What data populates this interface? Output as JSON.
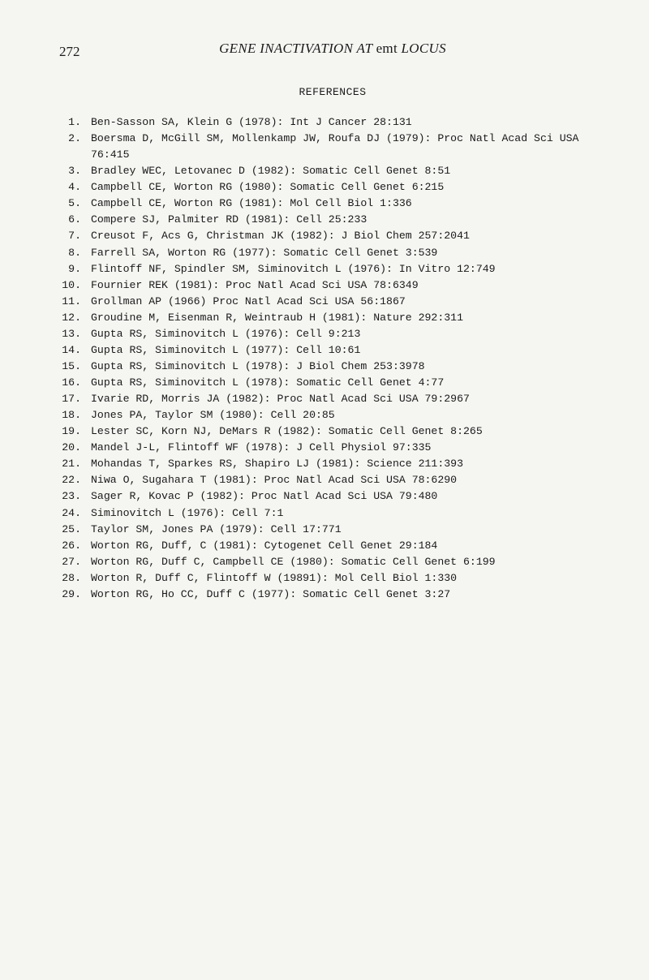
{
  "page_number": "272",
  "running_title_italic_1": "GENE INACTIVATION AT ",
  "running_title_roman": "emt",
  "running_title_italic_2": " LOCUS",
  "section_heading": "REFERENCES",
  "references": [
    {
      "num": "1.",
      "text": "Ben-Sasson SA, Klein G  (1978):  Int J Cancer 28:131"
    },
    {
      "num": "2.",
      "text": "Boersma D, McGill SM, Mollenkamp JW, Roufa DJ  (1979):  Proc Natl Acad Sci USA 76:415"
    },
    {
      "num": "3.",
      "text": "Bradley WEC, Letovanec D  (1982):  Somatic Cell Genet 8:51"
    },
    {
      "num": "4.",
      "text": "Campbell CE, Worton RG  (1980):  Somatic Cell Genet 6:215"
    },
    {
      "num": "5.",
      "text": "Campbell CE, Worton RG  (1981):  Mol Cell Biol 1:336"
    },
    {
      "num": "6.",
      "text": "Compere SJ, Palmiter RD  (1981):  Cell 25:233"
    },
    {
      "num": "7.",
      "text": "Creusot F, Acs G, Christman JK  (1982):  J Biol Chem 257:2041"
    },
    {
      "num": "8.",
      "text": "Farrell SA, Worton RG  (1977):  Somatic Cell Genet 3:539"
    },
    {
      "num": "9.",
      "text": "Flintoff NF, Spindler SM, Siminovitch L  (1976):  In Vitro 12:749"
    },
    {
      "num": "10.",
      "text": "Fournier REK  (1981):  Proc Natl Acad Sci USA 78:6349"
    },
    {
      "num": "11.",
      "text": "Grollman AP  (1966)  Proc Natl Acad Sci USA 56:1867"
    },
    {
      "num": "12.",
      "text": "Groudine M, Eisenman R, Weintraub H  (1981):  Nature 292:311"
    },
    {
      "num": "13.",
      "text": "Gupta RS, Siminovitch L  (1976):  Cell 9:213"
    },
    {
      "num": "14.",
      "text": "Gupta RS, Siminovitch L  (1977):  Cell 10:61"
    },
    {
      "num": "15.",
      "text": "Gupta RS, Siminovitch L  (1978):  J Biol Chem 253:3978"
    },
    {
      "num": "16.",
      "text": "Gupta RS, Siminovitch L  (1978):  Somatic Cell Genet 4:77"
    },
    {
      "num": "17.",
      "text": "Ivarie RD, Morris JA  (1982):  Proc Natl Acad Sci USA 79:2967"
    },
    {
      "num": "18.",
      "text": "Jones PA, Taylor SM  (1980):  Cell 20:85"
    },
    {
      "num": "19.",
      "text": "Lester SC, Korn NJ, DeMars R  (1982):  Somatic Cell Genet 8:265"
    },
    {
      "num": "20.",
      "text": "Mandel J-L, Flintoff WF  (1978):  J Cell Physiol 97:335"
    },
    {
      "num": "21.",
      "text": "Mohandas T, Sparkes RS, Shapiro LJ  (1981):  Science 211:393"
    },
    {
      "num": "22.",
      "text": "Niwa O, Sugahara T  (1981):  Proc Natl Acad Sci USA 78:6290"
    },
    {
      "num": "23.",
      "text": "Sager R, Kovac P  (1982):  Proc Natl Acad Sci USA 79:480"
    },
    {
      "num": "24.",
      "text": "Siminovitch L  (1976):  Cell 7:1"
    },
    {
      "num": "25.",
      "text": "Taylor SM, Jones PA  (1979):  Cell 17:771"
    },
    {
      "num": "26.",
      "text": "Worton RG, Duff, C  (1981):  Cytogenet Cell Genet 29:184"
    },
    {
      "num": "27.",
      "text": "Worton RG, Duff C, Campbell CE  (1980):  Somatic Cell Genet 6:199"
    },
    {
      "num": "28.",
      "text": "Worton R, Duff C, Flintoff W  (19891):  Mol Cell Biol 1:330"
    },
    {
      "num": "29.",
      "text": "Worton RG, Ho CC, Duff C  (1977):  Somatic Cell Genet 3:27"
    }
  ]
}
